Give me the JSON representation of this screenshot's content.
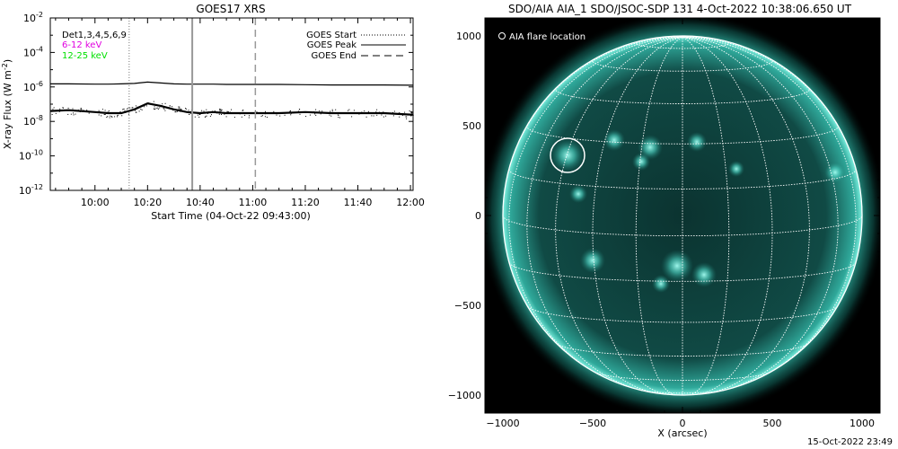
{
  "chart_data": [
    {
      "type": "line",
      "title": "GOES17 XRS",
      "xlabel": "Start Time (04-Oct-22 09:43:00)",
      "ylabel": "X-ray Flux (W m",
      "ylabel_sup": "-2",
      "ylabel_close": ")",
      "y_scale": "log",
      "ylim": [
        1e-12,
        0.01
      ],
      "xlim": [
        "09:43",
        "12:01"
      ],
      "y_ticks": [
        {
          "mant": "10",
          "exp": "-2",
          "value": 0.01
        },
        {
          "mant": "10",
          "exp": "-4",
          "value": 0.0001
        },
        {
          "mant": "10",
          "exp": "-6",
          "value": 1e-06
        },
        {
          "mant": "10",
          "exp": "-8",
          "value": 1e-08
        },
        {
          "mant": "10",
          "exp": "-10",
          "value": 1e-10
        },
        {
          "mant": "10",
          "exp": "-12",
          "value": 1e-12
        }
      ],
      "x_ticks": [
        "10:00",
        "10:20",
        "10:40",
        "11:00",
        "11:20",
        "11:40",
        "12:00"
      ],
      "legend_left": [
        {
          "text": "Det1,3,4,5,6,9",
          "color": "#000000"
        },
        {
          "text": "6-12 keV",
          "color": "#e000e0"
        },
        {
          "text": "12-25 keV",
          "color": "#00e000"
        }
      ],
      "legend_right": [
        {
          "text": "GOES Start",
          "style": "dotted"
        },
        {
          "text": "GOES Peak",
          "style": "solid"
        },
        {
          "text": "GOES End",
          "style": "dashed"
        }
      ],
      "legend_placement": "top-right",
      "markers": {
        "start": "10:13",
        "peak": "10:37",
        "end": "11:01"
      },
      "series": [
        {
          "name": "",
          "color": "#000000",
          "x": [
            "09:43",
            "09:50",
            "10:00",
            "10:05",
            "10:10",
            "10:15",
            "10:20",
            "10:25",
            "10:30",
            "10:35",
            "10:40",
            "10:45",
            "10:50",
            "11:00",
            "11:10",
            "11:20",
            "11:30",
            "11:40",
            "11:50",
            "12:00",
            "12:01"
          ],
          "values": [
            1.5e-06,
            1.5e-06,
            1.45e-06,
            1.45e-06,
            1.5e-06,
            1.6e-06,
            1.9e-06,
            1.7e-06,
            1.5e-06,
            1.45e-06,
            1.45e-06,
            1.45e-06,
            1.4e-06,
            1.4e-06,
            1.4e-06,
            1.35e-06,
            1.3e-06,
            1.3e-06,
            1.3e-06,
            1.25e-06,
            1.25e-06
          ]
        },
        {
          "name": "",
          "color": "#000000",
          "x": [
            "09:43",
            "09:50",
            "10:00",
            "10:05",
            "10:10",
            "10:15",
            "10:20",
            "10:25",
            "10:30",
            "10:35",
            "10:40",
            "10:45",
            "10:50",
            "11:00",
            "11:10",
            "11:20",
            "11:30",
            "11:40",
            "11:50",
            "12:00",
            "12:01"
          ],
          "values": [
            4e-08,
            4.5e-08,
            3.5e-08,
            3e-08,
            3e-08,
            5e-08,
            1.1e-07,
            8e-08,
            5e-08,
            3.5e-08,
            3e-08,
            3.5e-08,
            3e-08,
            3e-08,
            3e-08,
            3.5e-08,
            3e-08,
            3e-08,
            3e-08,
            2.5e-08,
            2.5e-08
          ]
        }
      ]
    },
    {
      "type": "scatter",
      "title": "SDO/AIA AIA_1 SDO/JSOC-SDP 131  4-Oct-2022 10:38:06.650 UT",
      "xlabel": "X (arcsec)",
      "ylabel": "",
      "xlim": [
        -1100,
        1100
      ],
      "ylim": [
        -1100,
        1100
      ],
      "x_ticks": [
        "-1000",
        "-500",
        "0",
        "500",
        "1000"
      ],
      "y_ticks": [
        "1000",
        "500",
        "0",
        "-500",
        "-1000"
      ],
      "legend_entry": "AIA flare location",
      "legend_placement": "top-left",
      "solar_radius_arcsec": 1000,
      "grid_spacing_deg": 15,
      "flare_location": {
        "x": -640,
        "y": 335,
        "radius": 95
      },
      "colors": {
        "background": "#000000",
        "disk": "#0e3f3b",
        "active_region": "#5fe8d8",
        "grid": "#ffffff"
      }
    }
  ],
  "footer": {
    "date": "15-Oct-2022 23:49"
  }
}
